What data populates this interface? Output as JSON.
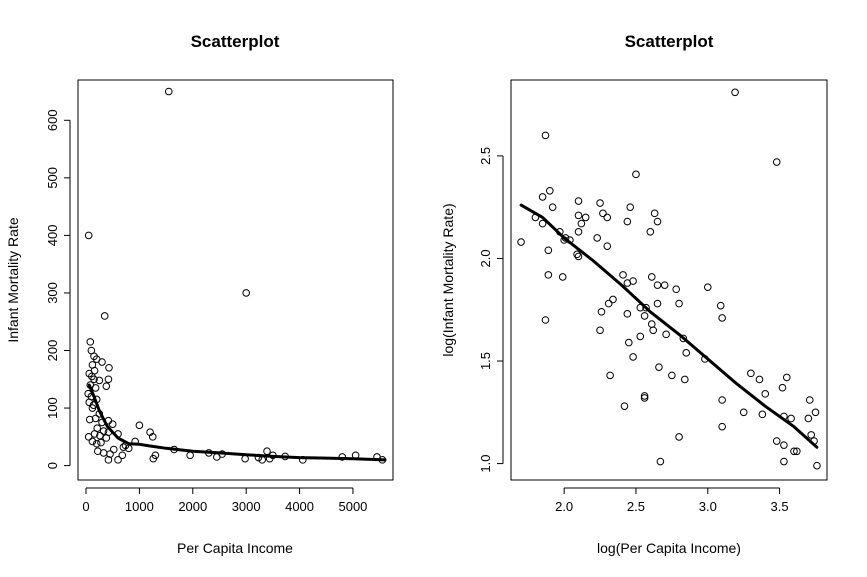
{
  "chart_data": [
    {
      "type": "scatter",
      "title": "Scatterplot",
      "xlabel": "Per Capita Income",
      "ylabel": "Infant Mortality Rate",
      "xlim": [
        -150,
        5750
      ],
      "ylim": [
        -25,
        670
      ],
      "x_ticks": [
        0,
        1000,
        2000,
        3000,
        4000,
        5000
      ],
      "x_tick_labels": [
        "0",
        "1000",
        "2000",
        "3000",
        "4000",
        "5000"
      ],
      "y_ticks": [
        0,
        100,
        200,
        300,
        400,
        500,
        600
      ],
      "y_tick_labels": [
        "0",
        "100",
        "200",
        "300",
        "400",
        "500",
        "600"
      ],
      "grid": false,
      "points": [
        [
          1550,
          650
        ],
        [
          50,
          400
        ],
        [
          3000,
          300
        ],
        [
          350,
          260
        ],
        [
          80,
          215
        ],
        [
          100,
          200
        ],
        [
          150,
          190
        ],
        [
          200,
          185
        ],
        [
          300,
          180
        ],
        [
          430,
          170
        ],
        [
          120,
          175
        ],
        [
          160,
          165
        ],
        [
          60,
          160
        ],
        [
          110,
          155
        ],
        [
          150,
          150
        ],
        [
          250,
          148
        ],
        [
          420,
          150
        ],
        [
          80,
          140
        ],
        [
          180,
          135
        ],
        [
          380,
          138
        ],
        [
          40,
          125
        ],
        [
          100,
          120
        ],
        [
          200,
          115
        ],
        [
          60,
          110
        ],
        [
          140,
          105
        ],
        [
          120,
          100
        ],
        [
          250,
          90
        ],
        [
          70,
          80
        ],
        [
          180,
          82
        ],
        [
          420,
          78
        ],
        [
          300,
          75
        ],
        [
          500,
          72
        ],
        [
          210,
          65
        ],
        [
          330,
          60
        ],
        [
          420,
          58
        ],
        [
          160,
          55
        ],
        [
          260,
          52
        ],
        [
          50,
          50
        ],
        [
          380,
          48
        ],
        [
          600,
          55
        ],
        [
          1000,
          70
        ],
        [
          1200,
          58
        ],
        [
          1250,
          50
        ],
        [
          740,
          35
        ],
        [
          120,
          42
        ],
        [
          280,
          40
        ],
        [
          700,
          32
        ],
        [
          200,
          38
        ],
        [
          520,
          28
        ],
        [
          220,
          25
        ],
        [
          330,
          22
        ],
        [
          450,
          20
        ],
        [
          680,
          18
        ],
        [
          800,
          30
        ],
        [
          920,
          42
        ],
        [
          1260,
          12
        ],
        [
          1300,
          18
        ],
        [
          1650,
          28
        ],
        [
          1950,
          18
        ],
        [
          2300,
          22
        ],
        [
          2450,
          15
        ],
        [
          2550,
          20
        ],
        [
          2980,
          12
        ],
        [
          3230,
          14
        ],
        [
          3300,
          10
        ],
        [
          3390,
          25
        ],
        [
          3440,
          12
        ],
        [
          3500,
          18
        ],
        [
          4060,
          10
        ],
        [
          4800,
          15
        ],
        [
          5050,
          18
        ],
        [
          5450,
          15
        ],
        [
          5550,
          10
        ],
        [
          600,
          10
        ],
        [
          420,
          10
        ],
        [
          3730,
          16
        ]
      ],
      "smooth_line": [
        [
          60,
          140
        ],
        [
          150,
          120
        ],
        [
          250,
          95
        ],
        [
          400,
          68
        ],
        [
          600,
          48
        ],
        [
          800,
          38
        ],
        [
          1000,
          37
        ],
        [
          1200,
          34
        ],
        [
          1500,
          30
        ],
        [
          2000,
          25
        ],
        [
          2500,
          22
        ],
        [
          3000,
          19
        ],
        [
          3500,
          16
        ],
        [
          4000,
          14
        ],
        [
          4500,
          13
        ],
        [
          5000,
          12
        ],
        [
          5600,
          10
        ]
      ]
    },
    {
      "type": "scatter",
      "title": "Scatterplot",
      "xlabel": "log(Per Capita Income)",
      "ylabel": "log(Infant Mortality Rate)",
      "xlim": [
        1.63,
        3.83
      ],
      "ylim": [
        0.92,
        2.87
      ],
      "x_ticks": [
        2.0,
        2.5,
        3.0,
        3.5
      ],
      "x_tick_labels": [
        "2.0",
        "2.5",
        "3.0",
        "3.5"
      ],
      "y_ticks": [
        1.0,
        1.5,
        2.0,
        2.5
      ],
      "y_tick_labels": [
        "1.0",
        "1.5",
        "2.0",
        "2.5"
      ],
      "grid": false,
      "points": [
        [
          3.19,
          2.81
        ],
        [
          1.87,
          2.6
        ],
        [
          3.48,
          2.47
        ],
        [
          2.5,
          2.41
        ],
        [
          1.85,
          2.3
        ],
        [
          1.9,
          2.33
        ],
        [
          2.25,
          2.27
        ],
        [
          2.1,
          2.28
        ],
        [
          1.92,
          2.25
        ],
        [
          2.46,
          2.25
        ],
        [
          2.63,
          2.22
        ],
        [
          1.8,
          2.2
        ],
        [
          2.15,
          2.2
        ],
        [
          2.1,
          2.21
        ],
        [
          2.3,
          2.2
        ],
        [
          2.44,
          2.18
        ],
        [
          2.65,
          2.18
        ],
        [
          1.85,
          2.17
        ],
        [
          2.12,
          2.17
        ],
        [
          1.97,
          2.13
        ],
        [
          2.1,
          2.13
        ],
        [
          2.6,
          2.13
        ],
        [
          2.01,
          2.1
        ],
        [
          2.23,
          2.1
        ],
        [
          2.04,
          2.09
        ],
        [
          1.7,
          2.08
        ],
        [
          2.3,
          2.06
        ],
        [
          1.89,
          2.04
        ],
        [
          2.09,
          2.02
        ],
        [
          2.1,
          2.01
        ],
        [
          2.41,
          1.92
        ],
        [
          2.61,
          1.91
        ],
        [
          1.89,
          1.92
        ],
        [
          1.99,
          1.91
        ],
        [
          2.48,
          1.89
        ],
        [
          2.44,
          1.88
        ],
        [
          2.65,
          1.87
        ],
        [
          2.7,
          1.87
        ],
        [
          2.78,
          1.85
        ],
        [
          3.0,
          1.86
        ],
        [
          2.65,
          1.78
        ],
        [
          2.8,
          1.78
        ],
        [
          2.53,
          1.76
        ],
        [
          2.57,
          1.76
        ],
        [
          2.31,
          1.78
        ],
        [
          2.34,
          1.8
        ],
        [
          3.09,
          1.77
        ],
        [
          2.44,
          1.73
        ],
        [
          2.26,
          1.74
        ],
        [
          2.56,
          1.72
        ],
        [
          3.1,
          1.71
        ],
        [
          1.87,
          1.7
        ],
        [
          2.61,
          1.68
        ],
        [
          2.62,
          1.65
        ],
        [
          2.25,
          1.65
        ],
        [
          2.71,
          1.63
        ],
        [
          2.53,
          1.62
        ],
        [
          2.83,
          1.61
        ],
        [
          2.45,
          1.59
        ],
        [
          2.85,
          1.54
        ],
        [
          2.48,
          1.52
        ],
        [
          2.98,
          1.51
        ],
        [
          2.66,
          1.47
        ],
        [
          3.3,
          1.44
        ],
        [
          2.32,
          1.43
        ],
        [
          3.55,
          1.42
        ],
        [
          2.75,
          1.43
        ],
        [
          3.52,
          1.37
        ],
        [
          3.36,
          1.41
        ],
        [
          2.84,
          1.41
        ],
        [
          3.4,
          1.34
        ],
        [
          2.56,
          1.33
        ],
        [
          2.56,
          1.32
        ],
        [
          3.1,
          1.31
        ],
        [
          3.71,
          1.31
        ],
        [
          3.25,
          1.25
        ],
        [
          2.42,
          1.28
        ],
        [
          3.38,
          1.24
        ],
        [
          3.53,
          1.23
        ],
        [
          3.58,
          1.22
        ],
        [
          3.7,
          1.22
        ],
        [
          3.75,
          1.25
        ],
        [
          3.1,
          1.18
        ],
        [
          3.74,
          1.11
        ],
        [
          3.48,
          1.11
        ],
        [
          2.8,
          1.13
        ],
        [
          3.6,
          1.06
        ],
        [
          3.62,
          1.06
        ],
        [
          3.72,
          1.14
        ],
        [
          3.53,
          1.09
        ],
        [
          3.53,
          1.01
        ],
        [
          2.67,
          1.01
        ],
        [
          3.76,
          0.99
        ],
        [
          2.0,
          2.09
        ],
        [
          2.27,
          2.22
        ]
      ],
      "smooth_line": [
        [
          1.7,
          2.26
        ],
        [
          1.85,
          2.2
        ],
        [
          2.0,
          2.1
        ],
        [
          2.2,
          1.99
        ],
        [
          2.4,
          1.87
        ],
        [
          2.6,
          1.74
        ],
        [
          2.8,
          1.63
        ],
        [
          3.0,
          1.51
        ],
        [
          3.2,
          1.39
        ],
        [
          3.4,
          1.28
        ],
        [
          3.6,
          1.18
        ],
        [
          3.76,
          1.08
        ]
      ]
    }
  ]
}
